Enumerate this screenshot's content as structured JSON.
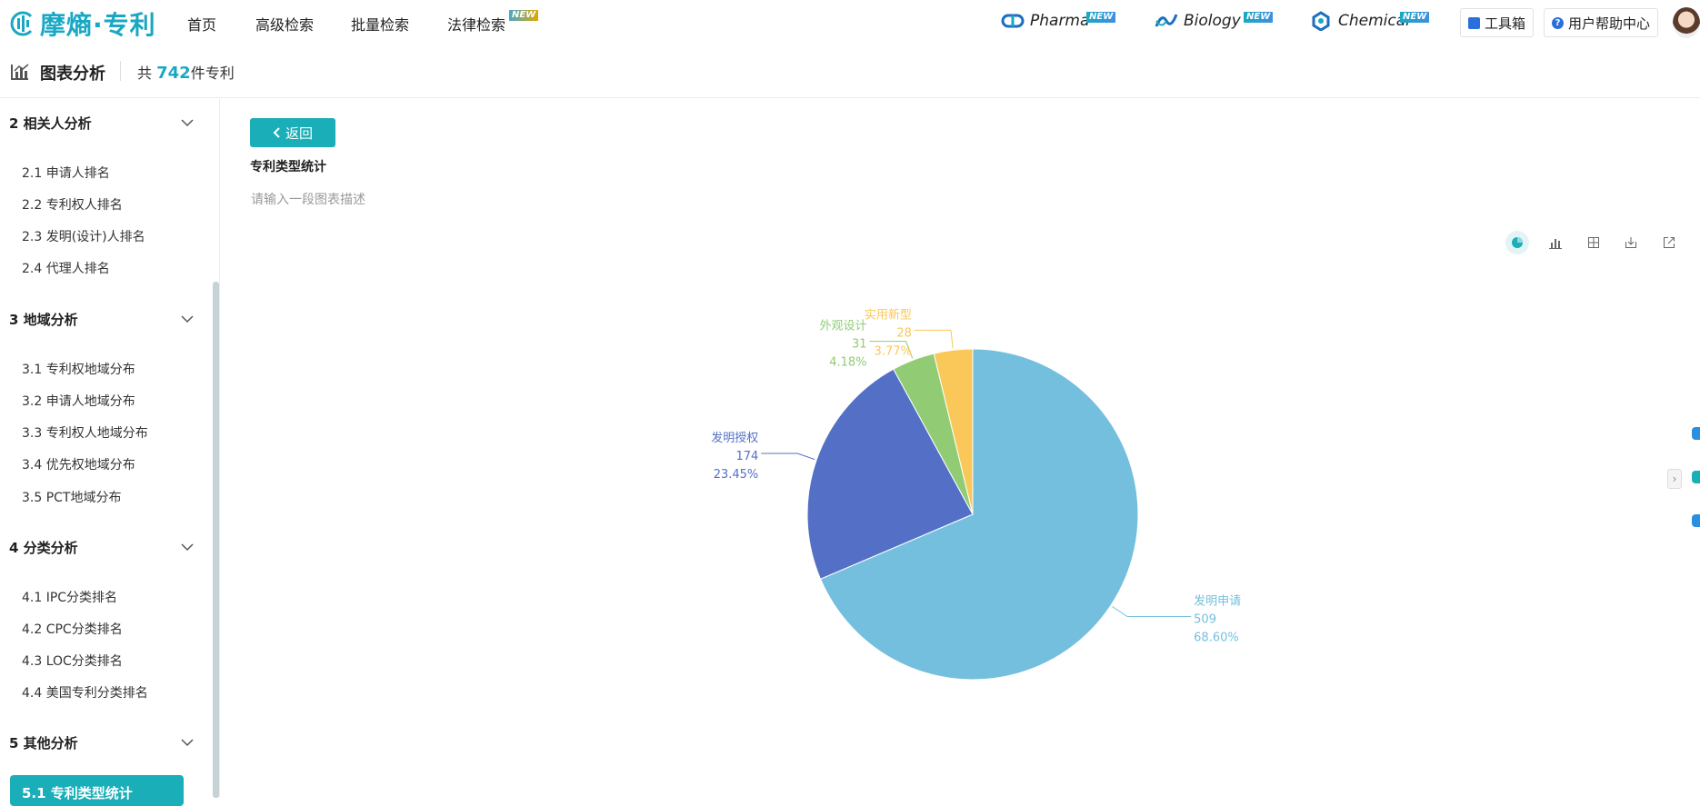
{
  "brand": {
    "name": "摩熵·专利"
  },
  "nav": [
    {
      "label": "首页"
    },
    {
      "label": "高级检索"
    },
    {
      "label": "批量检索"
    },
    {
      "label": "法律检索",
      "badge": "NEW"
    }
  ],
  "products": [
    {
      "label": "Pharma",
      "badge": "NEW"
    },
    {
      "label": "Biology",
      "badge": "NEW"
    },
    {
      "label": "Chemical",
      "badge": "NEW"
    }
  ],
  "tools": {
    "toolbox": "工具箱",
    "help": "用户帮助中心"
  },
  "header": {
    "title": "图表分析",
    "count_prefix": "共",
    "count": "742",
    "count_suffix": "件专利"
  },
  "sidebar": {
    "sections": [
      {
        "title": "2 相关人分析",
        "items": [
          "2.1 申请人排名",
          "2.2 专利权人排名",
          "2.3 发明(设计)人排名",
          "2.4 代理人排名"
        ]
      },
      {
        "title": "3 地域分析",
        "items": [
          "3.1 专利权地域分布",
          "3.2 申请人地域分布",
          "3.3 专利权人地域分布",
          "3.4 优先权地域分布",
          "3.5 PCT地域分布"
        ]
      },
      {
        "title": "4 分类分析",
        "items": [
          "4.1 IPC分类排名",
          "4.2 CPC分类排名",
          "4.3 LOC分类排名",
          "4.4 美国专利分类排名"
        ]
      },
      {
        "title": "5 其他分析",
        "items": []
      }
    ],
    "active": "5.1 专利类型统计"
  },
  "main": {
    "back_label": "返回",
    "title": "专利类型统计",
    "description": "请输入一段图表描述"
  },
  "toolbar_icons": [
    "pie-chart-icon",
    "bar-chart-icon",
    "table-icon",
    "download-icon",
    "export-icon"
  ],
  "chart_data": {
    "type": "pie",
    "slices": [
      {
        "name": "发明申请",
        "value": 509,
        "percent": "68.60%",
        "color": "#74bfdd"
      },
      {
        "name": "发明授权",
        "value": 174,
        "percent": "23.45%",
        "color": "#5470c6"
      },
      {
        "name": "外观设计",
        "value": 31,
        "percent": "4.18%",
        "color": "#91cc75"
      },
      {
        "name": "实用新型",
        "value": 28,
        "percent": "3.77%",
        "color": "#fac858"
      }
    ]
  }
}
